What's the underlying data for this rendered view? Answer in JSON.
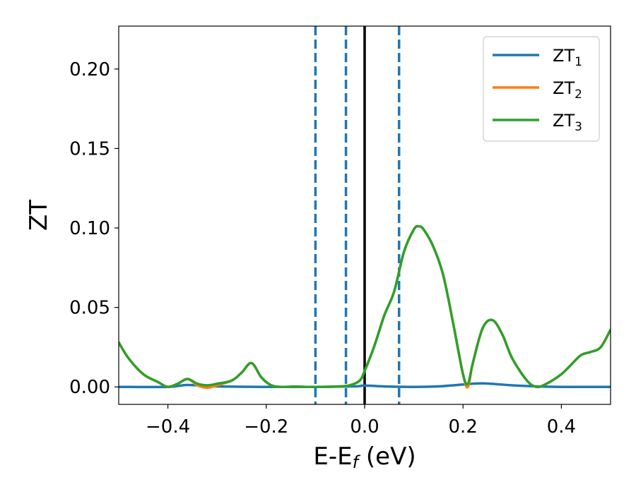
{
  "chart_data": {
    "type": "line",
    "xlabel": {
      "base": "E-E",
      "sub": "f",
      "suffix": " (eV)"
    },
    "ylabel": "ZT",
    "xlim": [
      -0.5,
      0.5
    ],
    "ylim": [
      -0.011,
      0.227
    ],
    "xticks": [
      {
        "v": -0.4,
        "label": "−0.4"
      },
      {
        "v": -0.2,
        "label": "−0.2"
      },
      {
        "v": 0.0,
        "label": "0.0"
      },
      {
        "v": 0.2,
        "label": "0.2"
      },
      {
        "v": 0.4,
        "label": "0.4"
      }
    ],
    "yticks": [
      {
        "v": 0.0,
        "label": "0.00"
      },
      {
        "v": 0.05,
        "label": "0.05"
      },
      {
        "v": 0.1,
        "label": "0.10"
      },
      {
        "v": 0.15,
        "label": "0.15"
      },
      {
        "v": 0.2,
        "label": "0.20"
      }
    ],
    "grid": false,
    "legend_position": "top-right",
    "vlines": [
      {
        "x": -0.1,
        "style": "dashed",
        "color": "#1f77b4"
      },
      {
        "x": -0.038,
        "style": "dashed",
        "color": "#1f77b4"
      },
      {
        "x": 0.07,
        "style": "dashed",
        "color": "#1f77b4"
      },
      {
        "x": 0.0,
        "style": "solid",
        "color": "#000000"
      }
    ],
    "series": [
      {
        "name": "ZT",
        "sub": "1",
        "color": "#1f77b4",
        "x": [
          -0.5,
          -0.4,
          -0.36,
          -0.3,
          -0.2,
          -0.1,
          -0.02,
          0.0,
          0.05,
          0.1,
          0.15,
          0.2,
          0.24,
          0.3,
          0.35,
          0.4,
          0.5
        ],
        "y": [
          0.0,
          0.0,
          0.0012,
          0.0003,
          0.0,
          0.0,
          0.0003,
          0.0008,
          0.0002,
          0.0,
          0.0003,
          0.0015,
          0.0022,
          0.001,
          0.0003,
          0.0,
          0.0
        ]
      },
      {
        "name": "ZT",
        "sub": "2",
        "color": "#ff7f0e",
        "x": [
          -0.5,
          -0.48,
          -0.45,
          -0.42,
          -0.4,
          -0.38,
          -0.36,
          -0.34,
          -0.32,
          -0.3,
          -0.27,
          -0.25,
          -0.23,
          -0.21,
          -0.19,
          -0.17,
          -0.14,
          -0.12,
          -0.1,
          -0.08,
          -0.05,
          -0.03,
          -0.01,
          0.0,
          0.02,
          0.04,
          0.06,
          0.08,
          0.1,
          0.11,
          0.12,
          0.14,
          0.16,
          0.18,
          0.2,
          0.21,
          0.22,
          0.24,
          0.26,
          0.28,
          0.3,
          0.33,
          0.35,
          0.37,
          0.4,
          0.42,
          0.44,
          0.46,
          0.48,
          0.5
        ],
        "y": [
          0.028,
          0.018,
          0.008,
          0.003,
          0.0,
          0.002,
          0.005,
          0.001,
          -0.0005,
          0.001,
          0.004,
          0.009,
          0.015,
          0.006,
          0.001,
          0.0,
          0.0002,
          0.0,
          0.0,
          0.0,
          0.0003,
          0.001,
          0.004,
          0.01,
          0.026,
          0.045,
          0.06,
          0.085,
          0.099,
          0.101,
          0.099,
          0.088,
          0.07,
          0.04,
          0.008,
          0.0,
          0.015,
          0.037,
          0.042,
          0.033,
          0.018,
          0.004,
          0.0,
          0.002,
          0.008,
          0.014,
          0.02,
          0.022,
          0.025,
          0.036
        ]
      },
      {
        "name": "ZT",
        "sub": "3",
        "color": "#2ca02c",
        "x": [
          -0.5,
          -0.48,
          -0.45,
          -0.42,
          -0.4,
          -0.38,
          -0.36,
          -0.34,
          -0.32,
          -0.3,
          -0.27,
          -0.25,
          -0.23,
          -0.21,
          -0.19,
          -0.17,
          -0.14,
          -0.12,
          -0.1,
          -0.08,
          -0.05,
          -0.03,
          -0.01,
          0.0,
          0.02,
          0.04,
          0.06,
          0.08,
          0.1,
          0.11,
          0.12,
          0.14,
          0.16,
          0.18,
          0.2,
          0.21,
          0.22,
          0.24,
          0.26,
          0.28,
          0.3,
          0.33,
          0.35,
          0.37,
          0.4,
          0.42,
          0.44,
          0.46,
          0.48,
          0.5
        ],
        "y": [
          0.028,
          0.018,
          0.008,
          0.003,
          0.0,
          0.002,
          0.005,
          0.002,
          0.001,
          0.002,
          0.004,
          0.009,
          0.015,
          0.006,
          0.001,
          0.0,
          0.0002,
          0.0,
          0.0,
          0.0,
          0.0003,
          0.001,
          0.004,
          0.01,
          0.026,
          0.045,
          0.06,
          0.085,
          0.099,
          0.101,
          0.099,
          0.088,
          0.07,
          0.04,
          0.008,
          0.002,
          0.015,
          0.037,
          0.042,
          0.033,
          0.018,
          0.004,
          0.0,
          0.002,
          0.008,
          0.014,
          0.02,
          0.022,
          0.025,
          0.036
        ]
      }
    ]
  }
}
